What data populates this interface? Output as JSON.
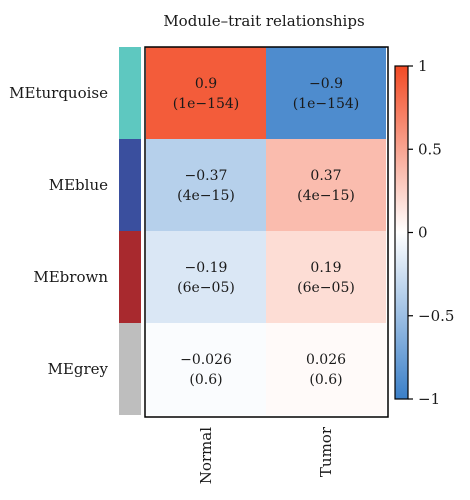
{
  "chart_data": {
    "type": "heatmap",
    "title": "Module–trait relationships",
    "rows": [
      "MEturquoise",
      "MEblue",
      "MEbrown",
      "MEgrey"
    ],
    "row_colors": [
      "#5ec8c0",
      "#3a4f9e",
      "#a8292e",
      "#bebebe"
    ],
    "columns": [
      "Normal",
      "Tumor"
    ],
    "values": [
      [
        0.9,
        -0.9
      ],
      [
        -0.37,
        0.37
      ],
      [
        -0.19,
        0.19
      ],
      [
        -0.026,
        0.026
      ]
    ],
    "cell_text": [
      [
        "0.9",
        "−0.9"
      ],
      [
        "−0.37",
        "0.37"
      ],
      [
        "−0.19",
        "0.19"
      ],
      [
        "−0.026",
        "0.026"
      ]
    ],
    "p_values": [
      [
        "(1e−154)",
        "(1e−154)"
      ],
      [
        "(4e−15)",
        "(4e−15)"
      ],
      [
        "(6e−05)",
        "(6e−05)"
      ],
      [
        "(0.6)",
        "(0.6)"
      ]
    ],
    "colorbar": {
      "range": [
        -1,
        1
      ],
      "ticks": [
        1,
        0.5,
        0,
        -0.5,
        -1
      ],
      "tick_labels": [
        "1",
        "0.5",
        "0",
        "−0.5",
        "−1"
      ],
      "color_low": "#3a7fc8",
      "color_mid": "#ffffff",
      "color_high": "#f24a24"
    }
  }
}
